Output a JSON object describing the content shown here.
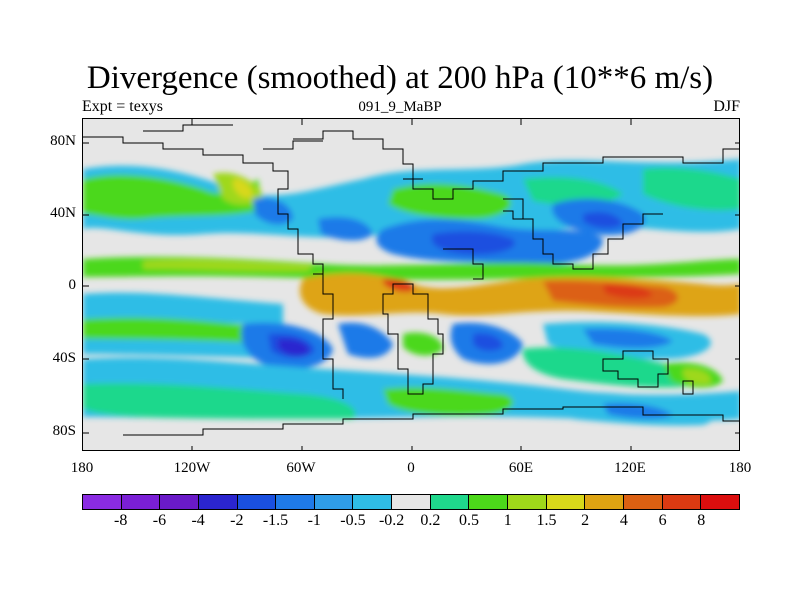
{
  "title": "Divergence (smoothed) at 200 hPa (10**6 m/s)",
  "subtitle_left": "Expt = texys",
  "subtitle_center": "091_9_MaBP",
  "subtitle_right": "DJF",
  "y_ticks": [
    "80N",
    "40N",
    "0",
    "40S",
    "80S"
  ],
  "x_ticks": [
    "180",
    "120W",
    "60W",
    "0",
    "60E",
    "120E",
    "180"
  ],
  "colorbar": {
    "colors": [
      "#8a2be2",
      "#7a1fd6",
      "#6a1ac8",
      "#2b25cf",
      "#1a50e0",
      "#1f7ae8",
      "#2f9de8",
      "#2fbde6",
      "#e6e6e6",
      "#1fd88c",
      "#4cd81a",
      "#9fd81a",
      "#d8d81a",
      "#dea412",
      "#dc6012",
      "#dc3a12",
      "#dc0e0e"
    ],
    "labels": [
      "-8",
      "-6",
      "-4",
      "-2",
      "-1.5",
      "-1",
      "-0.5",
      "-0.2",
      "0.2",
      "0.5",
      "1",
      "1.5",
      "2",
      "4",
      "6",
      "8"
    ]
  }
}
